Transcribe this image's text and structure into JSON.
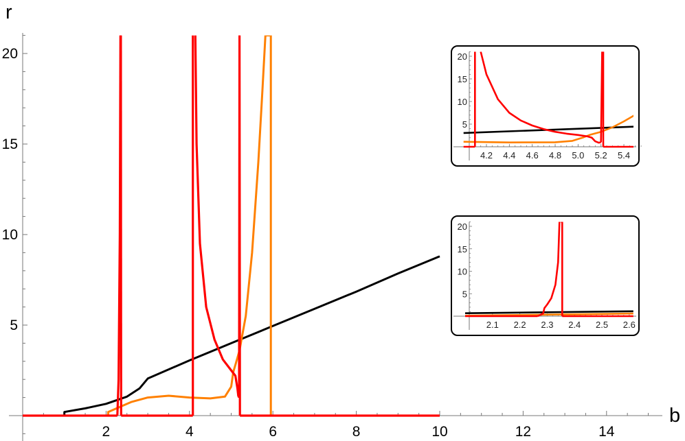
{
  "chart_data": [
    {
      "id": "main",
      "type": "line",
      "title": "",
      "xlabel": "b",
      "ylabel": "r",
      "xlim": [
        0,
        15.3
      ],
      "ylim": [
        -1.1,
        21
      ],
      "xticks": [
        2,
        4,
        6,
        8,
        10,
        12,
        14
      ],
      "yticks": [
        5,
        10,
        15,
        20
      ],
      "grid": false,
      "legend": null,
      "series": [
        {
          "name": "black",
          "color": "#000000",
          "x": [
            1.0,
            1.0,
            1.5,
            2.0,
            2.5,
            2.8,
            3.0,
            4.0,
            5.0,
            6.0,
            7.0,
            8.0,
            9.0,
            10.0
          ],
          "y": [
            0.05,
            0.2,
            0.4,
            0.65,
            1.05,
            1.5,
            2.05,
            3.05,
            4.0,
            4.95,
            5.9,
            6.85,
            7.85,
            8.8
          ]
        },
        {
          "name": "orange",
          "color": "#ff8000",
          "x": [
            2.05,
            2.05,
            2.3,
            2.6,
            3.0,
            3.5,
            4.0,
            4.5,
            4.85,
            5.0,
            5.05,
            5.1,
            5.2,
            5.35,
            5.5,
            5.65,
            5.75,
            5.82,
            5.95,
            5.95,
            5.95
          ],
          "y": [
            0.0,
            0.2,
            0.45,
            0.75,
            1.0,
            1.1,
            1.0,
            0.95,
            1.05,
            1.6,
            2.4,
            2.8,
            3.6,
            5.5,
            9.0,
            14.0,
            18.0,
            21.0,
            21.0,
            0.0,
            0.0
          ]
        },
        {
          "name": "red",
          "color": "#ff0000",
          "segments": [
            {
              "x": [
                0.0,
                2.27
              ],
              "y": [
                0.0,
                0.0
              ]
            },
            {
              "x": [
                2.27,
                2.3,
                2.33,
                2.345
              ],
              "y": [
                0.0,
                2.0,
                10.0,
                21.0
              ]
            },
            {
              "x": [
                2.355,
                2.36
              ],
              "y": [
                21.0,
                0.0
              ]
            },
            {
              "x": [
                2.36,
                4.08
              ],
              "y": [
                0.0,
                0.0
              ]
            },
            {
              "x": [
                4.08,
                4.08
              ],
              "y": [
                0.0,
                21.0
              ]
            },
            {
              "x": [
                4.14,
                4.17,
                4.25,
                4.4,
                4.6,
                4.8,
                5.0,
                5.1,
                5.15,
                5.17,
                5.19
              ],
              "y": [
                21.0,
                15.0,
                9.5,
                6.0,
                4.2,
                3.1,
                2.5,
                2.2,
                1.5,
                1.1,
                1.0
              ]
            },
            {
              "x": [
                5.19,
                5.2,
                5.21
              ],
              "y": [
                1.0,
                21.0,
                0.0
              ]
            },
            {
              "x": [
                5.21,
                10.0
              ],
              "y": [
                0.0,
                0.0
              ]
            }
          ]
        }
      ]
    },
    {
      "id": "inset-top",
      "type": "line",
      "xlim": [
        4.05,
        5.55
      ],
      "ylim": [
        0,
        21
      ],
      "xticks": [
        4.2,
        4.4,
        4.6,
        4.8,
        5.0,
        5.2,
        5.4
      ],
      "xtick_labels": [
        "4.2",
        "4.4",
        "4.6",
        "4.8",
        "5.0",
        "5.2",
        "5.4"
      ],
      "yticks": [
        5,
        10,
        15,
        20
      ],
      "series": [
        {
          "name": "black",
          "color": "#000000",
          "x": [
            4.0,
            5.55
          ],
          "y": [
            3.05,
            4.5
          ]
        },
        {
          "name": "orange",
          "color": "#ff8000",
          "x": [
            4.0,
            4.4,
            4.8,
            4.95,
            5.05,
            5.1,
            5.2,
            5.3,
            5.4,
            5.55
          ],
          "y": [
            1.1,
            0.95,
            1.0,
            1.3,
            2.1,
            2.6,
            3.3,
            4.3,
            5.6,
            7.8
          ]
        },
        {
          "name": "red",
          "color": "#ff0000",
          "segments": [
            {
              "x": [
                4.0,
                4.1
              ],
              "y": [
                0.0,
                0.0
              ]
            },
            {
              "x": [
                4.1,
                4.1
              ],
              "y": [
                0.0,
                21.0
              ]
            },
            {
              "x": [
                4.15,
                4.2,
                4.3,
                4.4,
                4.5,
                4.6,
                4.7,
                4.8,
                4.9,
                5.0,
                5.08,
                5.12,
                5.15,
                5.18,
                5.2
              ],
              "y": [
                21.0,
                16.0,
                10.5,
                7.5,
                5.8,
                4.7,
                3.9,
                3.3,
                2.9,
                2.6,
                2.3,
                2.0,
                1.2,
                0.9,
                1.0
              ]
            },
            {
              "x": [
                5.2,
                5.21,
                5.22,
                5.22
              ],
              "y": [
                1.0,
                21.0,
                21.0,
                0.0
              ]
            },
            {
              "x": [
                5.22,
                5.55
              ],
              "y": [
                0.0,
                0.0
              ]
            }
          ]
        }
      ]
    },
    {
      "id": "inset-bottom",
      "type": "line",
      "xlim": [
        2.015,
        2.615
      ],
      "ylim": [
        0,
        21
      ],
      "xticks": [
        2.1,
        2.2,
        2.3,
        2.4,
        2.5,
        2.6
      ],
      "xtick_labels": [
        "2.1",
        "2.2",
        "2.3",
        "2.4",
        "2.5",
        "2.6"
      ],
      "yticks": [
        5,
        10,
        15,
        20
      ],
      "series": [
        {
          "name": "black",
          "color": "#000000",
          "x": [
            2.0,
            2.615
          ],
          "y": [
            0.65,
            1.1
          ]
        },
        {
          "name": "orange",
          "color": "#ff8000",
          "x": [
            2.0,
            2.615
          ],
          "y": [
            0.1,
            0.6
          ]
        },
        {
          "name": "red",
          "color": "#ff0000",
          "segments": [
            {
              "x": [
                2.0,
                2.265
              ],
              "y": [
                0.0,
                0.0
              ]
            },
            {
              "x": [
                2.265,
                2.285,
                2.29,
                2.3,
                2.315,
                2.33,
                2.34,
                2.345
              ],
              "y": [
                0.0,
                0.6,
                1.8,
                2.6,
                4.0,
                7.0,
                12.0,
                21.0
              ]
            },
            {
              "x": [
                2.35,
                2.355,
                2.355
              ],
              "y": [
                21.0,
                21.0,
                0.0
              ]
            },
            {
              "x": [
                2.355,
                2.615
              ],
              "y": [
                0.0,
                0.0
              ]
            }
          ]
        }
      ]
    }
  ],
  "labels": {
    "xlabel": "b",
    "ylabel": "r"
  }
}
